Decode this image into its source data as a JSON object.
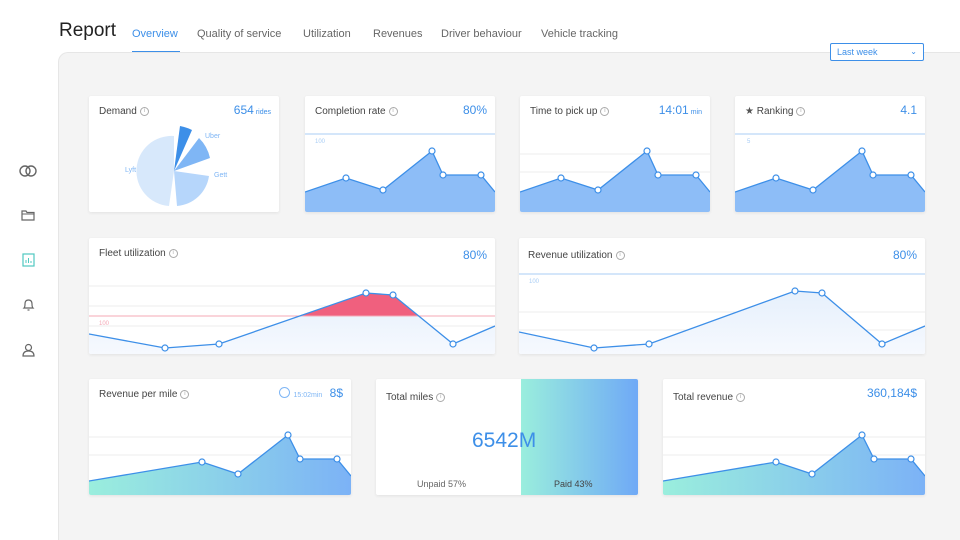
{
  "header": {
    "title": "Report",
    "tabs": [
      "Overview",
      "Quality of service",
      "Utilization",
      "Revenues",
      "Driver behaviour",
      "Vehicle tracking"
    ],
    "period": "Last week"
  },
  "sidebar": {
    "icons": [
      "logo-icon",
      "folder-icon",
      "report-icon",
      "bell-icon",
      "user-icon"
    ]
  },
  "cards": {
    "demand": {
      "title": "Demand",
      "value": "654",
      "unit": "rides",
      "slices": [
        "Uber",
        "Gett",
        "Lyft"
      ]
    },
    "completion": {
      "title": "Completion rate",
      "value": "80%",
      "ref": "100"
    },
    "pickup": {
      "title": "Time to pick up",
      "value": "14:01",
      "unit": "min"
    },
    "ranking": {
      "title": "Ranking",
      "value": "4.1",
      "ref": "5"
    },
    "fleet": {
      "title": "Fleet utilization",
      "value": "80%",
      "ref": "100"
    },
    "revenue_util": {
      "title": "Revenue utilization",
      "value": "80%",
      "ref": "100"
    },
    "rev_mile": {
      "title": "Revenue per mile",
      "time": "15:02min",
      "value": "8$"
    },
    "total_miles": {
      "title": "Total miles",
      "value": "6542M",
      "unpaid": "Unpaid 57%",
      "paid": "Paid 43%"
    },
    "total_revenue": {
      "title": "Total revenue",
      "value": "360,184$"
    }
  }
}
